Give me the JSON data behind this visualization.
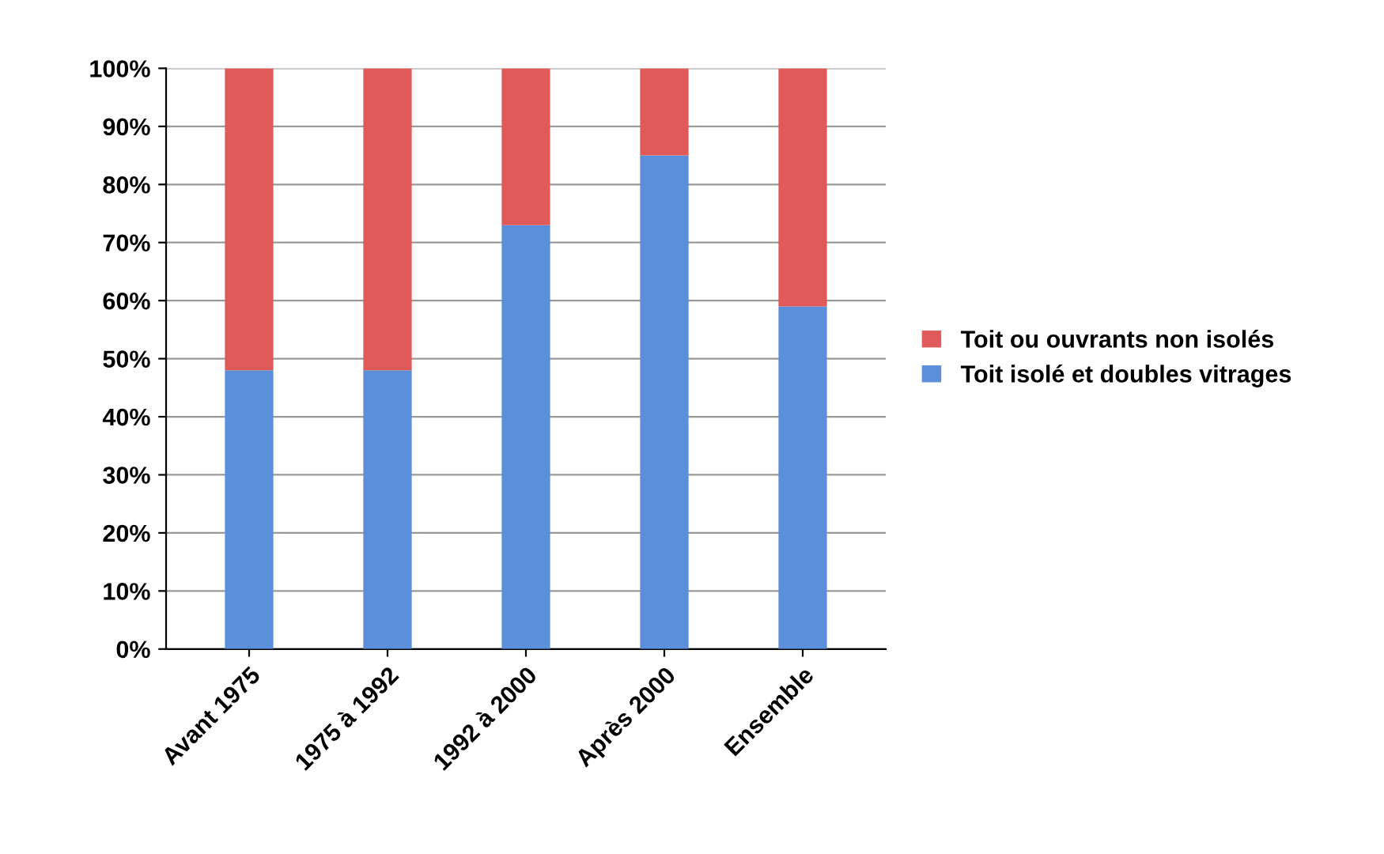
{
  "chart_data": {
    "type": "bar",
    "stacked": true,
    "categories": [
      "Avant 1975",
      "1975 à 1992",
      "1992 à 2000",
      "Après 2000",
      "Ensemble"
    ],
    "series": [
      {
        "name": "Toit isolé et doubles vitrages",
        "color": "#5b8fd9",
        "values": [
          48,
          48,
          73,
          85,
          59
        ]
      },
      {
        "name": "Toit ou ouvrants non isolés",
        "color": "#e05a5a",
        "values": [
          52,
          52,
          27,
          15,
          41
        ]
      }
    ],
    "ylim": [
      0,
      100
    ],
    "yticks": [
      {
        "value": 0,
        "label": "0%"
      },
      {
        "value": 10,
        "label": "10%"
      },
      {
        "value": 20,
        "label": "20%"
      },
      {
        "value": 30,
        "label": "30%"
      },
      {
        "value": 40,
        "label": "40%"
      },
      {
        "value": 50,
        "label": "50%"
      },
      {
        "value": 60,
        "label": "60%"
      },
      {
        "value": 70,
        "label": "70%"
      },
      {
        "value": 80,
        "label": "80%"
      },
      {
        "value": 90,
        "label": "90%"
      },
      {
        "value": 100,
        "label": "100%"
      }
    ],
    "grid": "y",
    "legend": "right"
  }
}
